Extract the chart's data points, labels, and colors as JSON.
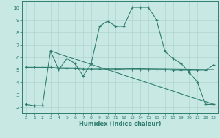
{
  "line1_x": [
    0,
    1,
    2,
    3,
    4,
    5,
    6,
    7,
    8,
    9,
    10,
    11,
    12,
    13,
    14,
    15,
    16,
    17,
    18,
    19,
    20,
    21,
    22,
    23
  ],
  "line1_y": [
    2.2,
    2.1,
    2.1,
    6.5,
    5.0,
    5.9,
    5.5,
    4.5,
    5.5,
    8.5,
    8.9,
    8.5,
    8.5,
    10.0,
    10.0,
    10.0,
    9.0,
    6.5,
    5.9,
    5.5,
    4.8,
    4.0,
    2.2,
    2.2
  ],
  "line2_x": [
    0,
    1,
    2,
    3,
    4,
    5,
    6,
    7,
    8,
    9,
    10,
    11,
    12,
    13,
    14,
    15,
    16,
    17,
    18,
    19,
    20,
    21,
    22,
    23
  ],
  "line2_y": [
    5.2,
    5.2,
    5.2,
    5.2,
    5.1,
    5.1,
    5.1,
    5.05,
    5.05,
    5.05,
    5.05,
    5.05,
    5.0,
    5.0,
    5.0,
    5.0,
    5.0,
    5.0,
    4.95,
    4.95,
    4.95,
    4.95,
    4.95,
    5.4
  ],
  "line3_x": [
    3,
    23
  ],
  "line3_y": [
    6.5,
    2.2
  ],
  "line4_x": [
    0,
    23
  ],
  "line4_y": [
    5.2,
    5.0
  ],
  "color": "#2e7d6e",
  "bg_color": "#c8e8e4",
  "grid_color": "#b0d4d0",
  "xlabel": "Humidex (Indice chaleur)",
  "ylim": [
    1.5,
    10.5
  ],
  "xlim": [
    -0.5,
    23.5
  ],
  "yticks": [
    2,
    3,
    4,
    5,
    6,
    7,
    8,
    9,
    10
  ],
  "xticks": [
    0,
    1,
    2,
    3,
    4,
    5,
    6,
    7,
    8,
    9,
    10,
    11,
    12,
    13,
    14,
    15,
    16,
    17,
    18,
    19,
    20,
    21,
    22,
    23
  ]
}
